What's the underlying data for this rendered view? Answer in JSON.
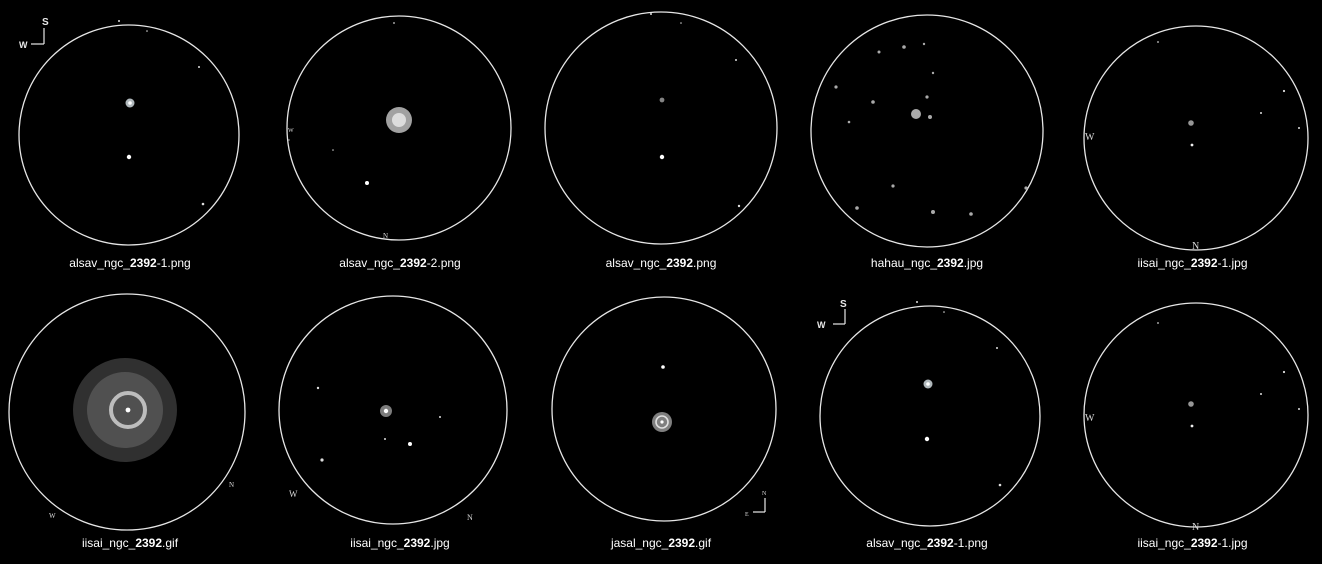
{
  "gallery": {
    "search_term": "2392",
    "items": [
      {
        "prefix": "alsav_ngc_",
        "match": "2392",
        "suffix": "-1.png",
        "compass": {
          "s": "S",
          "w": "W"
        },
        "edge_labels": []
      },
      {
        "prefix": "alsav_ngc_",
        "match": "2392",
        "suffix": "-2.png",
        "compass": null,
        "edge_labels": [
          "W",
          "N"
        ]
      },
      {
        "prefix": "alsav_ngc_",
        "match": "2392",
        "suffix": ".png",
        "compass": null,
        "edge_labels": []
      },
      {
        "prefix": "hahau_ngc_",
        "match": "2392",
        "suffix": ".jpg",
        "compass": null,
        "edge_labels": []
      },
      {
        "prefix": "iisai_ngc_",
        "match": "2392",
        "suffix": "-1.jpg",
        "compass": null,
        "edge_labels": [
          "W",
          "N"
        ]
      },
      {
        "prefix": "iisai_ngc_",
        "match": "2392",
        "suffix": ".gif",
        "compass": null,
        "edge_labels": [
          "N",
          "W"
        ]
      },
      {
        "prefix": "iisai_ngc_",
        "match": "2392",
        "suffix": ".jpg",
        "compass": null,
        "edge_labels": [
          "W",
          "N"
        ]
      },
      {
        "prefix": "jasal_ngc_",
        "match": "2392",
        "suffix": ".gif",
        "compass": {
          "s": "N",
          "w": "E"
        },
        "edge_labels": []
      },
      {
        "prefix": "alsav_ngc_",
        "match": "2392",
        "suffix": "-1.png",
        "compass": {
          "s": "S",
          "w": "W"
        },
        "edge_labels": []
      },
      {
        "prefix": "iisai_ngc_",
        "match": "2392",
        "suffix": "-1.jpg",
        "compass": null,
        "edge_labels": [
          "W",
          "N"
        ]
      }
    ]
  }
}
